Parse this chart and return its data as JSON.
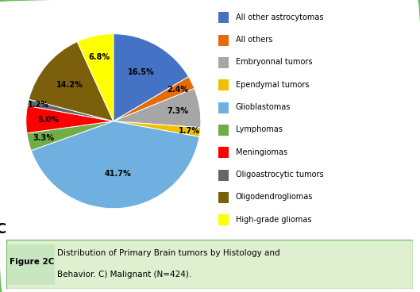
{
  "labels": [
    "All other astrocytomas",
    "All others",
    "Embryonnal tumors",
    "Ependymal tumors",
    "Glioblastomas",
    "Lymphomas",
    "Meningiomas",
    "Oligoastrocytic tumors",
    "Oligodendrogliomas",
    "High-grade gliomas"
  ],
  "values": [
    16.5,
    2.4,
    7.3,
    1.7,
    41.7,
    3.3,
    5.0,
    1.2,
    14.2,
    6.8
  ],
  "colors": [
    "#4472C4",
    "#E36C09",
    "#A6A6A6",
    "#F0C000",
    "#70B0E0",
    "#70AD47",
    "#FF0000",
    "#666666",
    "#7B5F0A",
    "#FFFF00"
  ],
  "startangle": 90,
  "figure_label": "C",
  "caption_bold": "Figure 2C",
  "caption_line1": "Distribution of Primary Brain tumors by Histology and",
  "caption_line2": "Behavior. C) Malignant (N=424).",
  "bg_color": "#FFFFFF",
  "border_color": "#6BBD5A",
  "caption_bg": "#DFF0D0",
  "fig_label_bg": "#C8E6C0"
}
